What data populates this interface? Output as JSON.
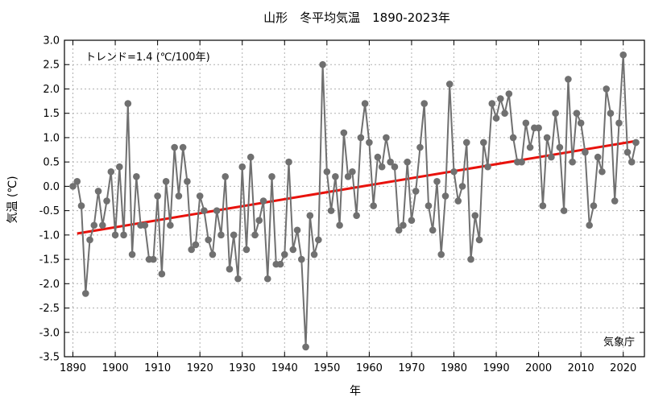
{
  "chart_data": {
    "type": "line",
    "title": "山形　冬平均気温　1890-2023年",
    "xlabel": "年",
    "ylabel": "気温 (℃)",
    "xlim": [
      1888,
      2025
    ],
    "ylim": [
      -3.5,
      3.0
    ],
    "xticks": [
      1890,
      1900,
      1910,
      1920,
      1930,
      1940,
      1950,
      1960,
      1970,
      1980,
      1990,
      2000,
      2010,
      2020
    ],
    "xtick_labels": [
      "1890",
      "1900",
      "1910",
      "1920",
      "1930",
      "1940",
      "1950",
      "1960",
      "1970",
      "1980",
      "1990",
      "2000",
      "2010",
      "2020"
    ],
    "yticks": [
      -3.5,
      -3.0,
      -2.5,
      -2.0,
      -1.5,
      -1.0,
      -0.5,
      0.0,
      0.5,
      1.0,
      1.5,
      2.0,
      2.5,
      3.0
    ],
    "ytick_labels": [
      "-3.5",
      "-3.0",
      "-2.5",
      "-2.0",
      "-1.5",
      "-1.0",
      "-0.5",
      "0.0",
      "0.5",
      "1.0",
      "1.5",
      "2.0",
      "2.5",
      "3.0"
    ],
    "grid": true,
    "trend_label": "トレンド=1.4 (℃/100年)",
    "source_label": "気象庁",
    "colors": {
      "series": "#707070",
      "trend": "#e8120c",
      "grid": "#b0b0b0"
    },
    "series": [
      {
        "x": [
          1890,
          1891,
          1892,
          1893,
          1894,
          1895,
          1896,
          1897,
          1898,
          1899,
          1900,
          1901,
          1902,
          1903,
          1904,
          1905,
          1906,
          1907,
          1908,
          1909,
          1910,
          1911,
          1912,
          1913,
          1914,
          1915,
          1916,
          1917,
          1918,
          1919,
          1920,
          1921,
          1922,
          1923,
          1924,
          1925,
          1926,
          1927,
          1928,
          1929,
          1930,
          1931,
          1932,
          1933,
          1934,
          1935,
          1936,
          1937,
          1938,
          1939,
          1940,
          1941,
          1942,
          1943,
          1944,
          1945,
          1946,
          1947,
          1948,
          1949,
          1950,
          1951,
          1952,
          1953,
          1954,
          1955,
          1956,
          1957,
          1958,
          1959,
          1960,
          1961,
          1962,
          1963,
          1964,
          1965,
          1966,
          1967,
          1968,
          1969,
          1970,
          1971,
          1972,
          1973,
          1974,
          1975,
          1976,
          1977,
          1978,
          1979,
          1980,
          1981,
          1982,
          1983,
          1984,
          1985,
          1986,
          1987,
          1988,
          1989,
          1990,
          1991,
          1992,
          1993,
          1994,
          1995,
          1996,
          1997,
          1998,
          1999,
          2000,
          2001,
          2002,
          2003,
          2004,
          2005,
          2006,
          2007,
          2008,
          2009,
          2010,
          2011,
          2012,
          2013,
          2014,
          2015,
          2016,
          2017,
          2018,
          2019,
          2020,
          2021,
          2022,
          2023
        ],
        "values": [
          0.0,
          0.1,
          -0.4,
          -2.2,
          -1.1,
          -0.8,
          -0.1,
          -0.8,
          -0.3,
          0.3,
          -1.0,
          0.4,
          -1.0,
          1.7,
          -1.4,
          0.2,
          -0.8,
          -0.8,
          -1.5,
          -1.5,
          -0.2,
          -1.8,
          0.1,
          -0.8,
          0.8,
          -0.2,
          0.8,
          0.1,
          -1.3,
          -1.2,
          -0.2,
          -0.5,
          -1.1,
          -1.4,
          -0.5,
          -1.0,
          0.2,
          -1.7,
          -1.0,
          -1.9,
          0.4,
          -1.3,
          0.6,
          -1.0,
          -0.7,
          -0.3,
          -1.9,
          0.2,
          -1.6,
          -1.6,
          -1.4,
          0.5,
          -1.3,
          -0.9,
          -1.5,
          -3.3,
          -0.6,
          -1.4,
          -1.1,
          2.5,
          0.3,
          -0.5,
          0.2,
          -0.8,
          1.1,
          0.2,
          0.3,
          -0.6,
          1.0,
          1.7,
          0.9,
          -0.4,
          0.6,
          0.4,
          1.0,
          0.5,
          0.4,
          -0.9,
          -0.8,
          0.5,
          -0.7,
          -0.1,
          0.8,
          1.7,
          -0.4,
          -0.9,
          0.1,
          -1.4,
          -0.2,
          2.1,
          0.3,
          -0.3,
          0.0,
          0.9,
          -1.5,
          -0.6,
          -1.1,
          0.9,
          0.4,
          1.7,
          1.4,
          1.8,
          1.5,
          1.9,
          1.0,
          0.5,
          0.5,
          1.3,
          0.8,
          1.2,
          1.2,
          -0.4,
          1.0,
          0.6,
          1.5,
          0.8,
          -0.5,
          2.2,
          0.5,
          1.5,
          1.3,
          0.7,
          -0.8,
          -0.4,
          0.6,
          0.3,
          2.0,
          1.5,
          -0.3,
          1.3,
          2.7,
          0.7,
          0.5,
          0.9
        ]
      }
    ],
    "trend": {
      "x": [
        1891,
        2023
      ],
      "y": [
        -0.97,
        0.93
      ]
    }
  }
}
